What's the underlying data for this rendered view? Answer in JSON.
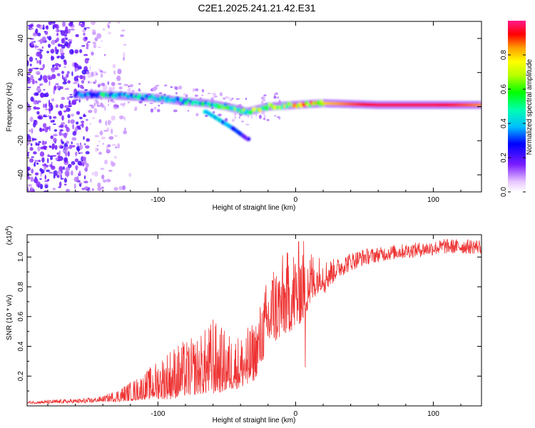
{
  "title": "C2E1.2025.241.21.42.E31",
  "colors": {
    "line": "#ee3333",
    "axis": "#000000",
    "background": "#ffffff"
  },
  "chart_data": [
    {
      "type": "heatmap",
      "xlabel": "Height of straight line (km)",
      "ylabel": "Frequency (Hz)",
      "xlim": [
        -195,
        135
      ],
      "ylim": [
        -50,
        50
      ],
      "xticks": [
        -100,
        0,
        100
      ],
      "xtick_labels": [
        "-100",
        "0",
        "100"
      ],
      "yticks": [
        -40,
        -20,
        0,
        20,
        40
      ],
      "ytick_labels": [
        "-40",
        "-20",
        "0",
        "20",
        "40"
      ],
      "ridge": [
        {
          "x": -155,
          "freq": 7,
          "amp": 0.35
        },
        {
          "x": -140,
          "freq": 7,
          "amp": 0.45
        },
        {
          "x": -120,
          "freq": 6,
          "amp": 0.45
        },
        {
          "x": -100,
          "freq": 5,
          "amp": 0.45
        },
        {
          "x": -80,
          "freq": 3,
          "amp": 0.45
        },
        {
          "x": -65,
          "freq": 2,
          "amp": 0.5
        },
        {
          "x": -50,
          "freq": 0,
          "amp": 0.55
        },
        {
          "x": -35,
          "freq": -3,
          "amp": 0.6
        },
        {
          "x": -20,
          "freq": 0,
          "amp": 0.7
        },
        {
          "x": 0,
          "freq": 1,
          "amp": 0.75
        },
        {
          "x": 20,
          "freq": 2,
          "amp": 0.8
        },
        {
          "x": 60,
          "freq": 1,
          "amp": 0.95
        },
        {
          "x": 100,
          "freq": 1,
          "amp": 0.95
        },
        {
          "x": 135,
          "freq": 1,
          "amp": 0.85
        }
      ],
      "branch": [
        {
          "x": -65,
          "freq": -3,
          "amp": 0.4
        },
        {
          "x": -55,
          "freq": -8,
          "amp": 0.4
        },
        {
          "x": -45,
          "freq": -13,
          "amp": 0.35
        },
        {
          "x": -35,
          "freq": -19,
          "amp": 0.2
        }
      ],
      "colorbar": {
        "label": "Normalized spectral amplitude",
        "range": [
          0,
          1
        ],
        "ticks": [
          0.0,
          0.2,
          0.4,
          0.6,
          0.8
        ],
        "tick_labels": [
          "0.0",
          "0.2",
          "0.4",
          "0.6",
          "0.8"
        ]
      }
    },
    {
      "type": "line",
      "xlabel": "Height of straight line (km)",
      "ylabel": "SNR (10 * v/v)",
      "scale_label": "(x10",
      "scale_exp": "4",
      "scale_close": ")",
      "xlim": [
        -195,
        135
      ],
      "ylim": [
        0,
        1.15
      ],
      "xticks": [
        -100,
        0,
        100
      ],
      "xtick_labels": [
        "-100",
        "0",
        "100"
      ],
      "yticks": [
        0.2,
        0.4,
        0.6,
        0.8,
        1.0
      ],
      "ytick_labels": [
        "0.2",
        "0.4",
        "0.6",
        "0.8",
        "1.0"
      ],
      "trend": [
        {
          "x": -195,
          "y": 0.02
        },
        {
          "x": -150,
          "y": 0.03
        },
        {
          "x": -130,
          "y": 0.05
        },
        {
          "x": -115,
          "y": 0.08
        },
        {
          "x": -100,
          "y": 0.12
        },
        {
          "x": -80,
          "y": 0.17
        },
        {
          "x": -70,
          "y": 0.19
        },
        {
          "x": -60,
          "y": 0.22
        },
        {
          "x": -50,
          "y": 0.21
        },
        {
          "x": -40,
          "y": 0.22
        },
        {
          "x": -30,
          "y": 0.28
        },
        {
          "x": -25,
          "y": 0.4
        },
        {
          "x": -20,
          "y": 0.53
        },
        {
          "x": -10,
          "y": 0.62
        },
        {
          "x": 0,
          "y": 0.68
        },
        {
          "x": 10,
          "y": 0.78
        },
        {
          "x": 20,
          "y": 0.86
        },
        {
          "x": 30,
          "y": 0.92
        },
        {
          "x": 40,
          "y": 0.97
        },
        {
          "x": 50,
          "y": 1.0
        },
        {
          "x": 70,
          "y": 1.03
        },
        {
          "x": 90,
          "y": 1.05
        },
        {
          "x": 110,
          "y": 1.07
        },
        {
          "x": 135,
          "y": 1.07
        }
      ],
      "noise": [
        {
          "x": -195,
          "amp": 0.01
        },
        {
          "x": -140,
          "amp": 0.02
        },
        {
          "x": -110,
          "amp": 0.1
        },
        {
          "x": -90,
          "amp": 0.2
        },
        {
          "x": -70,
          "amp": 0.22
        },
        {
          "x": -60,
          "amp": 0.28
        },
        {
          "x": -45,
          "amp": 0.2
        },
        {
          "x": -30,
          "amp": 0.22
        },
        {
          "x": -15,
          "amp": 0.3
        },
        {
          "x": 5,
          "amp": 0.32
        },
        {
          "x": 15,
          "amp": 0.15
        },
        {
          "x": 30,
          "amp": 0.07
        },
        {
          "x": 60,
          "amp": 0.05
        },
        {
          "x": 135,
          "amp": 0.05
        }
      ],
      "spikes": [
        {
          "x": -60,
          "y": 0.58
        },
        {
          "x": -35,
          "y": 0.15
        },
        {
          "x": -16,
          "y": 0.9
        },
        {
          "x": 3,
          "y": 0.93
        },
        {
          "x": 7,
          "y": 0.26
        },
        {
          "x": 9,
          "y": 0.92
        },
        {
          "x": 108,
          "y": 1.12
        }
      ]
    }
  ]
}
